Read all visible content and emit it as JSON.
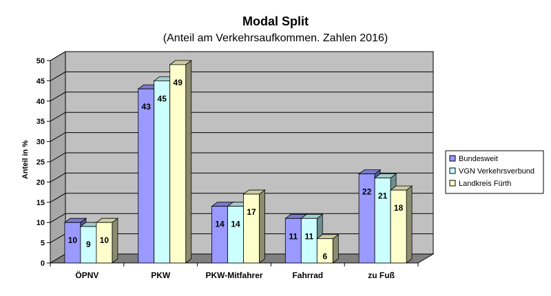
{
  "chart_data": {
    "type": "bar",
    "title": "Modal Split",
    "subtitle": "(Anteil am Verkehrsaufkommen. Zahlen 2016)",
    "xlabel": "",
    "ylabel": "Anteil in %",
    "ylim": [
      0,
      50
    ],
    "yticks": [
      0,
      5,
      10,
      15,
      20,
      25,
      30,
      35,
      40,
      45,
      50
    ],
    "categories": [
      "ÖPNV",
      "PKW",
      "PKW-Mitfahrer",
      "Fahrrad",
      "zu Fuß"
    ],
    "series": [
      {
        "name": "Bundesweit",
        "values": [
          10,
          43,
          14,
          11,
          22
        ],
        "color": "#9999ff"
      },
      {
        "name": "VGN Verkehrsverbund",
        "values": [
          9,
          45,
          14,
          11,
          21
        ],
        "color": "#ccffff"
      },
      {
        "name": "Landkreis Fürth",
        "values": [
          10,
          49,
          17,
          6,
          18
        ],
        "color": "#ffffcc"
      }
    ],
    "grid": true,
    "legend_position": "right",
    "style": "3d"
  }
}
